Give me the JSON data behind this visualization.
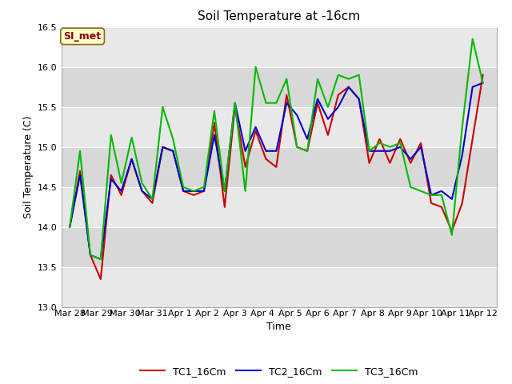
{
  "title": "Soil Temperature at -16cm",
  "xlabel": "Time",
  "ylabel": "Soil Temperature (C)",
  "ylim": [
    13.0,
    16.5
  ],
  "annotation_label": "SI_met",
  "series_colors": [
    "#cc0000",
    "#0000cc",
    "#00bb00"
  ],
  "series_names": [
    "TC1_16Cm",
    "TC2_16Cm",
    "TC3_16Cm"
  ],
  "x_tick_labels": [
    "Mar 28",
    "Mar 29",
    "Mar 30",
    "Mar 31",
    "Apr 1",
    "Apr 2",
    "Apr 3",
    "Apr 4",
    "Apr 5",
    "Apr 6",
    "Apr 7",
    "Apr 8",
    "Apr 9",
    "Apr 10",
    "Apr 11",
    "Apr 12"
  ],
  "TC1_y": [
    14.0,
    14.7,
    13.65,
    13.35,
    14.65,
    14.4,
    14.85,
    14.45,
    14.3,
    15.0,
    14.95,
    14.45,
    14.4,
    14.45,
    15.3,
    14.25,
    15.5,
    14.75,
    15.2,
    14.85,
    14.75,
    15.65,
    15.0,
    14.95,
    15.55,
    15.15,
    15.65,
    15.75,
    15.6,
    14.8,
    15.1,
    14.8,
    15.1,
    14.8,
    15.05,
    14.3,
    14.25,
    13.95,
    14.3,
    15.1,
    15.9
  ],
  "TC2_y": [
    14.0,
    14.65,
    13.65,
    13.6,
    14.6,
    14.45,
    14.85,
    14.45,
    14.35,
    15.0,
    14.95,
    14.45,
    14.45,
    14.45,
    15.15,
    14.45,
    15.55,
    14.95,
    15.25,
    14.95,
    14.95,
    15.55,
    15.4,
    15.1,
    15.6,
    15.35,
    15.5,
    15.75,
    15.6,
    14.95,
    14.95,
    14.95,
    15.0,
    14.85,
    15.0,
    14.4,
    14.45,
    14.35,
    14.9,
    15.75,
    15.8
  ],
  "TC3_y": [
    14.0,
    14.95,
    13.65,
    13.6,
    15.15,
    14.55,
    15.12,
    14.55,
    14.35,
    15.5,
    15.1,
    14.5,
    14.45,
    14.5,
    15.45,
    14.45,
    15.55,
    14.45,
    16.0,
    15.55,
    15.55,
    15.85,
    15.0,
    14.95,
    15.85,
    15.5,
    15.9,
    15.85,
    15.9,
    14.95,
    15.05,
    15.0,
    15.05,
    14.5,
    14.45,
    14.4,
    14.4,
    13.9,
    15.25,
    16.35,
    15.8
  ],
  "line_width": 1.5,
  "title_fontsize": 11,
  "axis_fontsize": 9,
  "tick_fontsize": 8,
  "legend_fontsize": 9,
  "band_colors": [
    "#e8e8e8",
    "#d8d8d8"
  ],
  "fig_bg": "#ffffff",
  "plot_bg": "#e8e8e8"
}
